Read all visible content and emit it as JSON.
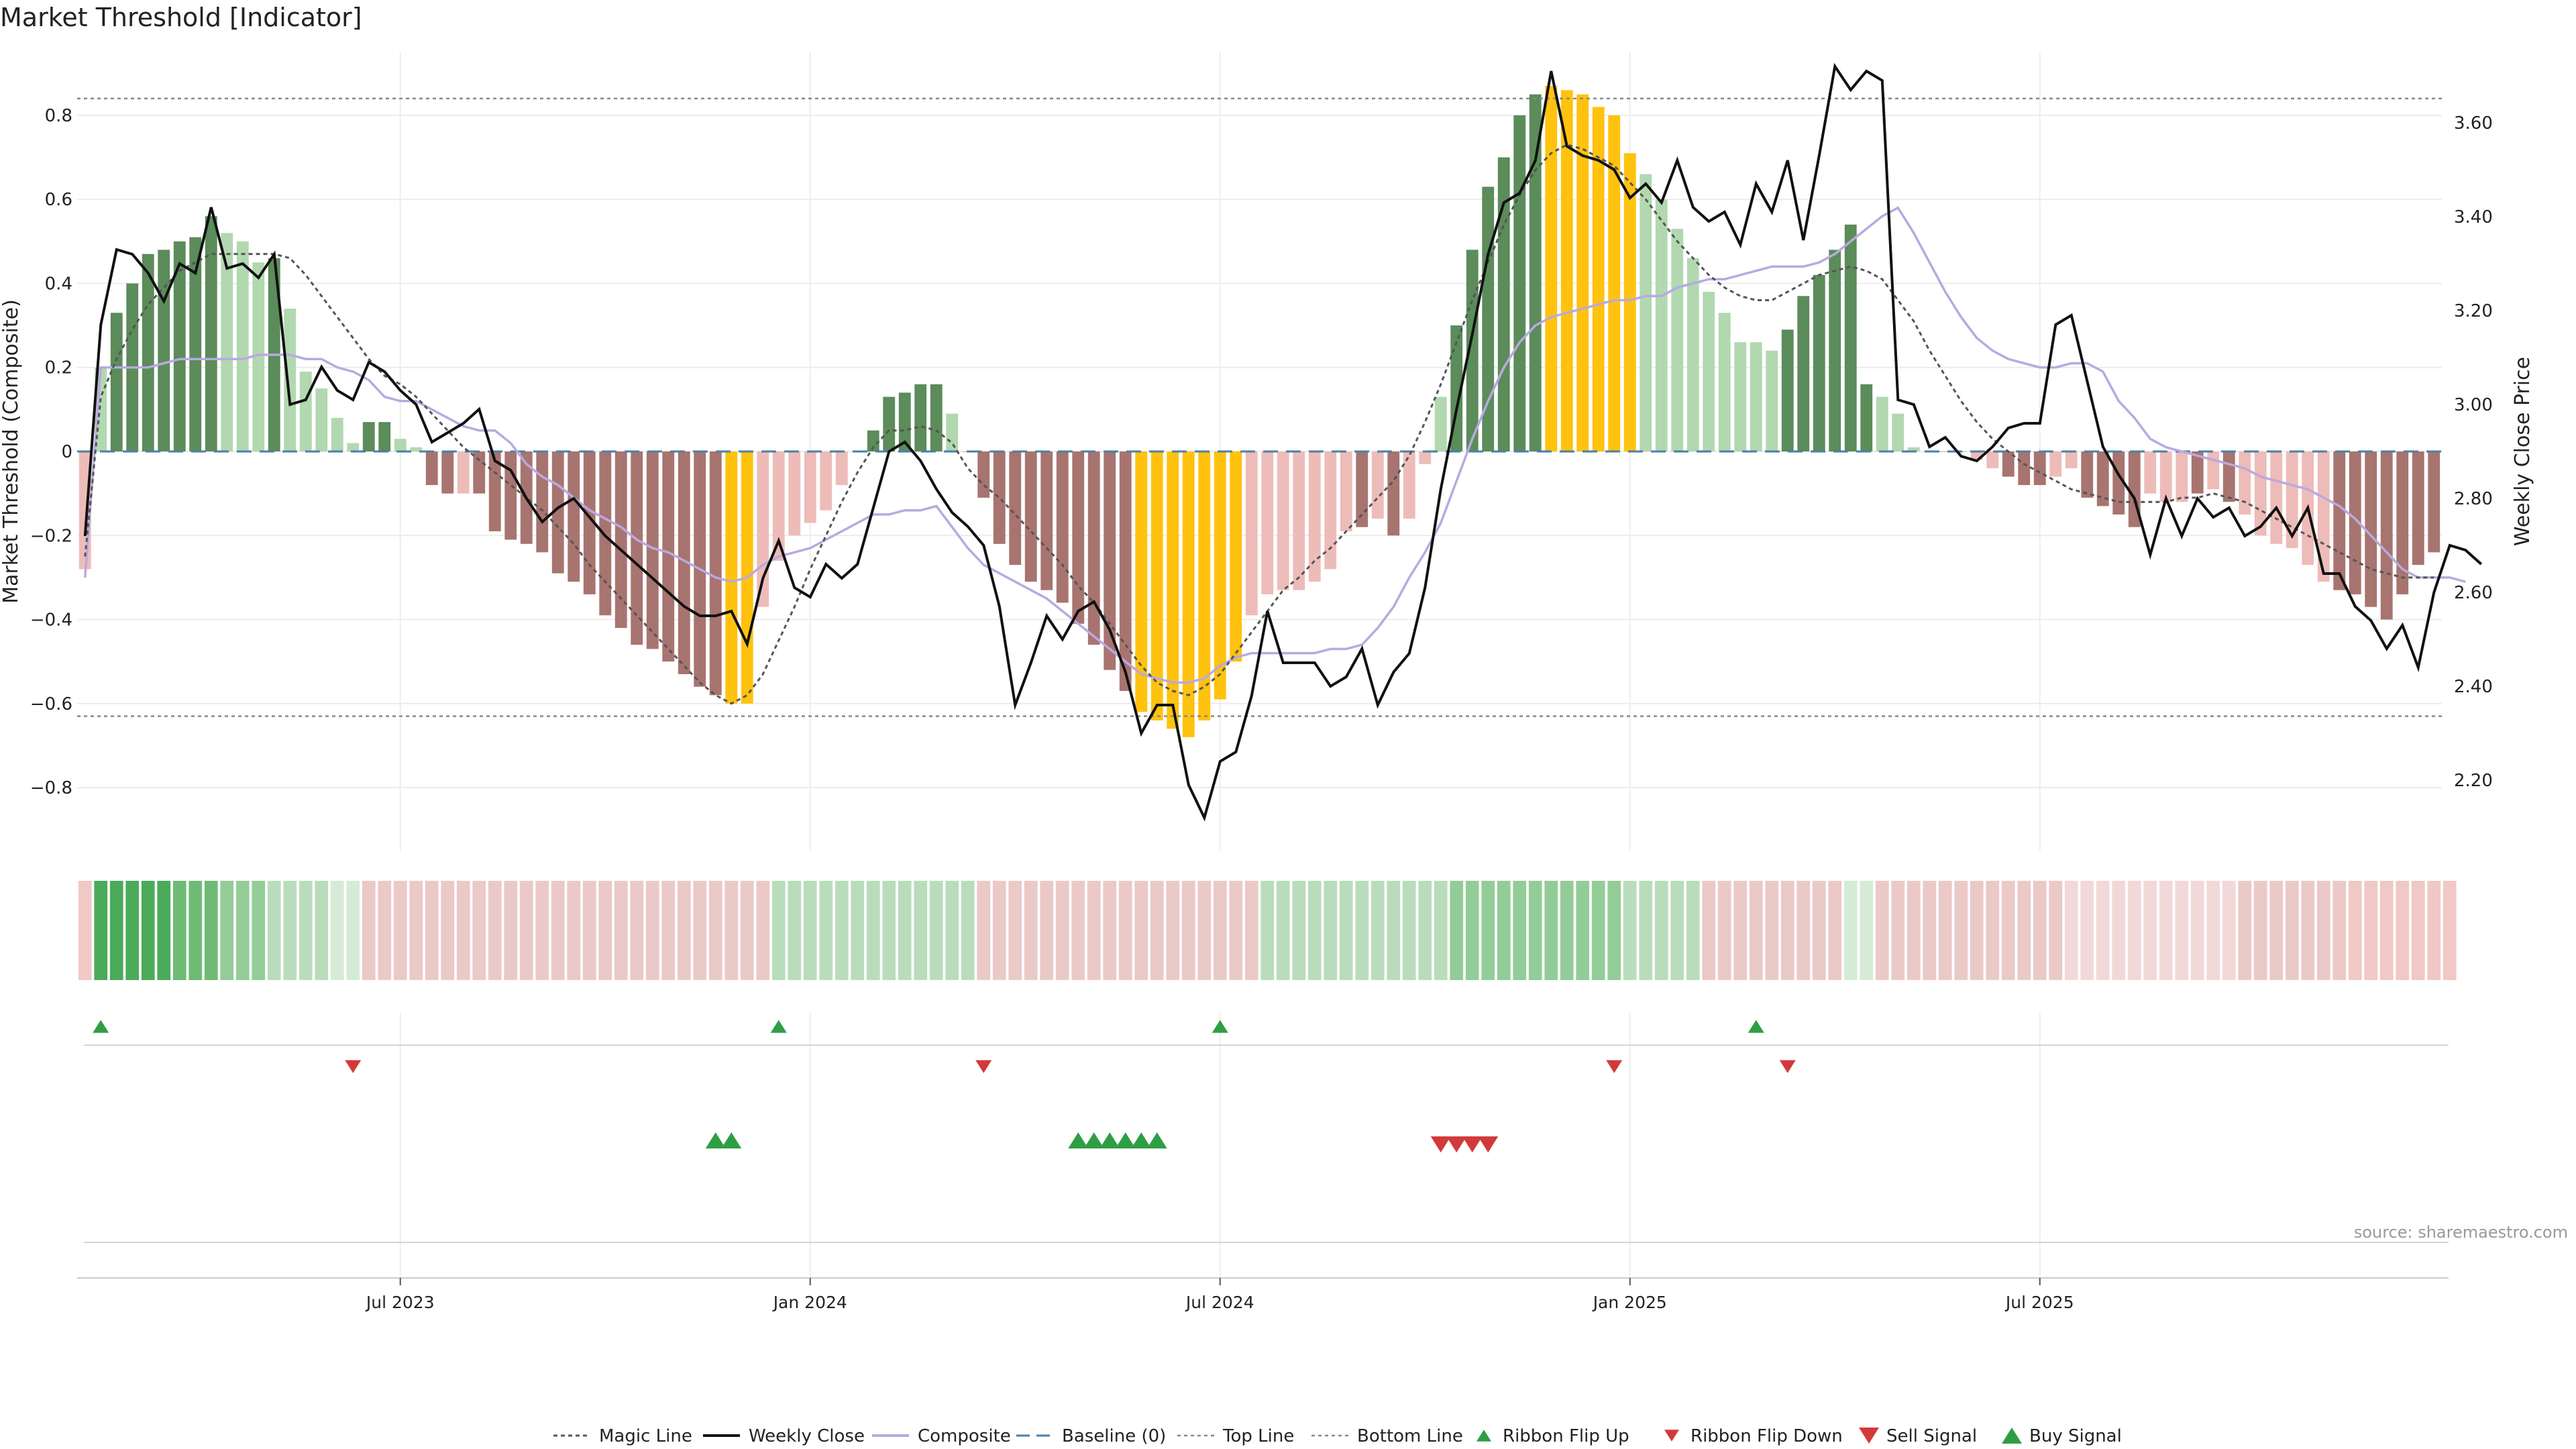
{
  "title": "Market Threshold [Indicator]",
  "source": "source: sharemaestro.com",
  "colors": {
    "dark_green": "#5b8c5a",
    "light_green": "#b2d8b0",
    "dark_red": "#a87470",
    "light_red": "#eebcb8",
    "gold": "#ffc20e",
    "composite": "#b9a9e0",
    "baseline": "#4a7fa8",
    "close": "#111111",
    "magic": "#555555",
    "up_marker": "#2e9e44",
    "down_marker": "#d23a3a"
  },
  "chart_data": {
    "type": "bar",
    "title": "Market Threshold [Indicator]",
    "ylabel_left": "Market Threshold (Composite)",
    "ylabel_right": "Weekly Close Price",
    "ylim_left": [
      -0.95,
      0.95
    ],
    "ylim_right": [
      2.05,
      3.75
    ],
    "left_ticks": [
      {
        "v": 0.8,
        "label": "0.8"
      },
      {
        "v": 0.6,
        "label": "0.6"
      },
      {
        "v": 0.4,
        "label": "0.4"
      },
      {
        "v": 0.2,
        "label": "0.2"
      },
      {
        "v": 0,
        "label": "0"
      },
      {
        "v": -0.2,
        "label": "−0.2"
      },
      {
        "v": -0.4,
        "label": "−0.4"
      },
      {
        "v": -0.6,
        "label": "−0.6"
      },
      {
        "v": -0.8,
        "label": "−0.8"
      }
    ],
    "right_ticks": [
      {
        "v": 3.6,
        "label": "3.60"
      },
      {
        "v": 3.4,
        "label": "3.40"
      },
      {
        "v": 3.2,
        "label": "3.20"
      },
      {
        "v": 3.0,
        "label": "3.00"
      },
      {
        "v": 2.8,
        "label": "2.80"
      },
      {
        "v": 2.6,
        "label": "2.60"
      },
      {
        "v": 2.4,
        "label": "2.40"
      },
      {
        "v": 2.2,
        "label": "2.20"
      }
    ],
    "x_ticks": [
      {
        "i": 20,
        "label": "Jul 2023"
      },
      {
        "i": 46,
        "label": "Jan 2024"
      },
      {
        "i": 72,
        "label": "Jul 2024"
      },
      {
        "i": 98,
        "label": "Jan 2025"
      },
      {
        "i": 124,
        "label": "Jul 2025"
      }
    ],
    "top_line": 0.84,
    "bottom_line": -0.63,
    "composite_values": [
      -0.28,
      0.2,
      0.33,
      0.4,
      0.47,
      0.48,
      0.5,
      0.51,
      0.56,
      0.52,
      0.5,
      0.45,
      0.46,
      0.34,
      0.19,
      0.15,
      0.08,
      0.02,
      0.07,
      0.07,
      0.03,
      0.01,
      -0.08,
      -0.1,
      -0.1,
      -0.1,
      -0.19,
      -0.21,
      -0.22,
      -0.24,
      -0.29,
      -0.31,
      -0.34,
      -0.39,
      -0.42,
      -0.46,
      -0.47,
      -0.5,
      -0.53,
      -0.56,
      -0.58,
      -0.6,
      -0.6,
      -0.37,
      -0.26,
      -0.2,
      -0.17,
      -0.14,
      -0.08,
      0.0,
      0.05,
      0.13,
      0.14,
      0.16,
      0.16,
      0.09,
      0.0,
      -0.11,
      -0.22,
      -0.27,
      -0.31,
      -0.33,
      -0.36,
      -0.41,
      -0.46,
      -0.52,
      -0.57,
      -0.62,
      -0.64,
      -0.66,
      -0.68,
      -0.64,
      -0.59,
      -0.5,
      -0.39,
      -0.34,
      -0.33,
      -0.33,
      -0.31,
      -0.28,
      -0.19,
      -0.18,
      -0.16,
      -0.2,
      -0.16,
      -0.03,
      0.13,
      0.3,
      0.48,
      0.63,
      0.7,
      0.8,
      0.85,
      0.87,
      0.86,
      0.85,
      0.82,
      0.8,
      0.71,
      0.66,
      0.6,
      0.53,
      0.46,
      0.38,
      0.33,
      0.26,
      0.26,
      0.24,
      0.29,
      0.37,
      0.42,
      0.48,
      0.54,
      0.16,
      0.13,
      0.09,
      0.01,
      0.0,
      0.0,
      0.0,
      -0.02,
      -0.04,
      -0.06,
      -0.08,
      -0.08,
      -0.06,
      -0.04,
      -0.11,
      -0.13,
      -0.15,
      -0.18,
      -0.1,
      -0.12,
      -0.12,
      -0.1,
      -0.09,
      -0.12,
      -0.15,
      -0.2,
      -0.22,
      -0.23,
      -0.27,
      -0.31,
      -0.33,
      -0.34,
      -0.37,
      -0.4,
      -0.34,
      -0.27,
      -0.24
    ],
    "bar_color_keys": [
      "LR",
      "LG",
      "DG",
      "DG",
      "DG",
      "DG",
      "DG",
      "DG",
      "DG",
      "LG",
      "LG",
      "LG",
      "DG",
      "LG",
      "LG",
      "LG",
      "LG",
      "LG",
      "DG",
      "DG",
      "LG",
      "LG",
      "DR",
      "DR",
      "LR",
      "DR",
      "DR",
      "DR",
      "DR",
      "DR",
      "DR",
      "DR",
      "DR",
      "DR",
      "DR",
      "DR",
      "DR",
      "DR",
      "DR",
      "DR",
      "DR",
      "GO",
      "GO",
      "LR",
      "LR",
      "LR",
      "LR",
      "LR",
      "LR",
      "LR",
      "DG",
      "DG",
      "DG",
      "DG",
      "DG",
      "LG",
      "LG",
      "DR",
      "DR",
      "DR",
      "DR",
      "DR",
      "DR",
      "DR",
      "DR",
      "DR",
      "DR",
      "GO",
      "GO",
      "GO",
      "GO",
      "GO",
      "GO",
      "GO",
      "LR",
      "LR",
      "LR",
      "LR",
      "LR",
      "LR",
      "LR",
      "DR",
      "LR",
      "DR",
      "LR",
      "LR",
      "LG",
      "DG",
      "DG",
      "DG",
      "DG",
      "DG",
      "DG",
      "GO",
      "GO",
      "GO",
      "GO",
      "GO",
      "GO",
      "LG",
      "LG",
      "LG",
      "LG",
      "LG",
      "LG",
      "LG",
      "LG",
      "LG",
      "DG",
      "DG",
      "DG",
      "DG",
      "DG",
      "DG",
      "LG",
      "LG",
      "LG",
      "LG",
      "LG",
      "LG",
      "LR",
      "LR",
      "DR",
      "DR",
      "DR",
      "LR",
      "LR",
      "DR",
      "DR",
      "DR",
      "DR",
      "LR",
      "LR",
      "LR",
      "DR",
      "LR",
      "DR",
      "LR",
      "LR",
      "LR",
      "LR",
      "LR",
      "LR",
      "DR",
      "DR",
      "DR",
      "DR",
      "DR",
      "DR",
      "DR",
      "LR",
      "LR",
      "LR"
    ],
    "composite_line": [
      -0.3,
      0.2,
      0.2,
      0.2,
      0.2,
      0.21,
      0.22,
      0.22,
      0.22,
      0.22,
      0.22,
      0.23,
      0.23,
      0.23,
      0.22,
      0.22,
      0.2,
      0.19,
      0.17,
      0.13,
      0.12,
      0.12,
      0.1,
      0.08,
      0.06,
      0.05,
      0.05,
      0.02,
      -0.03,
      -0.06,
      -0.08,
      -0.11,
      -0.14,
      -0.16,
      -0.18,
      -0.21,
      -0.23,
      -0.24,
      -0.26,
      -0.28,
      -0.3,
      -0.31,
      -0.3,
      -0.27,
      -0.25,
      -0.24,
      -0.23,
      -0.21,
      -0.19,
      -0.17,
      -0.15,
      -0.15,
      -0.14,
      -0.14,
      -0.13,
      -0.18,
      -0.23,
      -0.27,
      -0.29,
      -0.31,
      -0.33,
      -0.35,
      -0.38,
      -0.41,
      -0.44,
      -0.47,
      -0.5,
      -0.53,
      -0.54,
      -0.55,
      -0.55,
      -0.54,
      -0.51,
      -0.49,
      -0.48,
      -0.48,
      -0.48,
      -0.48,
      -0.48,
      -0.47,
      -0.47,
      -0.46,
      -0.42,
      -0.37,
      -0.3,
      -0.24,
      -0.17,
      -0.07,
      0.03,
      0.12,
      0.2,
      0.26,
      0.3,
      0.32,
      0.33,
      0.34,
      0.35,
      0.36,
      0.36,
      0.37,
      0.37,
      0.39,
      0.4,
      0.41,
      0.41,
      0.42,
      0.43,
      0.44,
      0.44,
      0.44,
      0.45,
      0.47,
      0.5,
      0.53,
      0.56,
      0.58,
      0.52,
      0.45,
      0.38,
      0.32,
      0.27,
      0.24,
      0.22,
      0.21,
      0.2,
      0.2,
      0.21,
      0.21,
      0.19,
      0.12,
      0.08,
      0.03,
      0.01,
      0.0,
      -0.01,
      -0.02,
      -0.03,
      -0.04,
      -0.06,
      -0.07,
      -0.08,
      -0.09,
      -0.11,
      -0.13,
      -0.16,
      -0.2,
      -0.24,
      -0.28,
      -0.3,
      -0.3,
      -0.3,
      -0.31
    ],
    "magic_line": [
      -0.25,
      0.13,
      0.22,
      0.29,
      0.35,
      0.39,
      0.43,
      0.45,
      0.47,
      0.47,
      0.47,
      0.47,
      0.47,
      0.46,
      0.42,
      0.37,
      0.32,
      0.27,
      0.22,
      0.18,
      0.16,
      0.13,
      0.09,
      0.05,
      0.01,
      -0.02,
      -0.05,
      -0.08,
      -0.11,
      -0.14,
      -0.18,
      -0.22,
      -0.27,
      -0.31,
      -0.35,
      -0.39,
      -0.43,
      -0.47,
      -0.51,
      -0.55,
      -0.58,
      -0.6,
      -0.58,
      -0.53,
      -0.45,
      -0.37,
      -0.28,
      -0.2,
      -0.12,
      -0.05,
      0.01,
      0.05,
      0.05,
      0.06,
      0.05,
      0.02,
      -0.04,
      -0.08,
      -0.11,
      -0.15,
      -0.19,
      -0.23,
      -0.27,
      -0.32,
      -0.36,
      -0.41,
      -0.46,
      -0.51,
      -0.55,
      -0.57,
      -0.58,
      -0.56,
      -0.53,
      -0.48,
      -0.43,
      -0.38,
      -0.33,
      -0.3,
      -0.26,
      -0.23,
      -0.19,
      -0.15,
      -0.11,
      -0.07,
      -0.01,
      0.07,
      0.16,
      0.26,
      0.36,
      0.45,
      0.54,
      0.61,
      0.67,
      0.71,
      0.73,
      0.72,
      0.7,
      0.68,
      0.64,
      0.6,
      0.55,
      0.5,
      0.46,
      0.42,
      0.39,
      0.37,
      0.36,
      0.36,
      0.38,
      0.4,
      0.42,
      0.43,
      0.44,
      0.43,
      0.41,
      0.36,
      0.31,
      0.24,
      0.18,
      0.12,
      0.07,
      0.03,
      0.0,
      -0.03,
      -0.05,
      -0.07,
      -0.09,
      -0.1,
      -0.11,
      -0.12,
      -0.12,
      -0.12,
      -0.12,
      -0.11,
      -0.11,
      -0.1,
      -0.11,
      -0.12,
      -0.14,
      -0.16,
      -0.18,
      -0.2,
      -0.22,
      -0.24,
      -0.26,
      -0.28,
      -0.29,
      -0.3,
      -0.3,
      -0.3
    ],
    "weekly_close": [
      2.72,
      3.17,
      3.33,
      3.32,
      3.28,
      3.22,
      3.3,
      3.28,
      3.42,
      3.29,
      3.3,
      3.27,
      3.32,
      3.0,
      3.01,
      3.08,
      3.03,
      3.01,
      3.09,
      3.07,
      3.03,
      3.0,
      2.92,
      2.94,
      2.96,
      2.99,
      2.88,
      2.86,
      2.8,
      2.75,
      2.78,
      2.8,
      2.76,
      2.72,
      2.69,
      2.66,
      2.63,
      2.6,
      2.57,
      2.55,
      2.55,
      2.56,
      2.49,
      2.63,
      2.71,
      2.61,
      2.59,
      2.66,
      2.63,
      2.66,
      2.78,
      2.9,
      2.92,
      2.88,
      2.82,
      2.77,
      2.74,
      2.7,
      2.57,
      2.36,
      2.45,
      2.55,
      2.5,
      2.56,
      2.58,
      2.52,
      2.43,
      2.3,
      2.36,
      2.36,
      2.19,
      2.12,
      2.24,
      2.26,
      2.38,
      2.56,
      2.45,
      2.45,
      2.45,
      2.4,
      2.42,
      2.48,
      2.36,
      2.43,
      2.47,
      2.61,
      2.82,
      2.99,
      3.15,
      3.32,
      3.43,
      3.45,
      3.52,
      3.71,
      3.55,
      3.53,
      3.52,
      3.5,
      3.44,
      3.47,
      3.43,
      3.52,
      3.42,
      3.39,
      3.41,
      3.34,
      3.47,
      3.41,
      3.52,
      3.35,
      3.53,
      3.72,
      3.67,
      3.71,
      3.69,
      3.01,
      3.0,
      2.91,
      2.93,
      2.89,
      2.88,
      2.91,
      2.95,
      2.96,
      2.96,
      3.17,
      3.19,
      3.05,
      2.91,
      2.85,
      2.8,
      2.68,
      2.8,
      2.72,
      2.8,
      2.76,
      2.78,
      2.72,
      2.74,
      2.78,
      2.72,
      2.78,
      2.64,
      2.64,
      2.57,
      2.54,
      2.48,
      2.53,
      2.44,
      2.6,
      2.7,
      2.69,
      2.66
    ],
    "ribbon_keys": [
      "R3",
      "G5",
      "G5",
      "G5",
      "G5",
      "G5",
      "G4",
      "G4",
      "G4",
      "G3",
      "G3",
      "G3",
      "G2",
      "G2",
      "G2",
      "G2",
      "G1",
      "G1",
      "R2",
      "R2",
      "R2",
      "R2",
      "R2",
      "R2",
      "R2",
      "R2",
      "R2",
      "R2",
      "R2",
      "R2",
      "R2",
      "R2",
      "R2",
      "R2",
      "R2",
      "R2",
      "R2",
      "R2",
      "R2",
      "R2",
      "R2",
      "R2",
      "R2",
      "R2",
      "G2",
      "G2",
      "G2",
      "G2",
      "G2",
      "G2",
      "G2",
      "G2",
      "G2",
      "G2",
      "G2",
      "G2",
      "G2",
      "R2",
      "R2",
      "R2",
      "R2",
      "R2",
      "R2",
      "R2",
      "R2",
      "R2",
      "R2",
      "R2",
      "R2",
      "R2",
      "R2",
      "R2",
      "R2",
      "R2",
      "R2",
      "G2",
      "G2",
      "G2",
      "G2",
      "G2",
      "G2",
      "G2",
      "G2",
      "G2",
      "G2",
      "G2",
      "G2",
      "G3",
      "G3",
      "G3",
      "G3",
      "G3",
      "G3",
      "G3",
      "G3",
      "G3",
      "G3",
      "G3",
      "G2",
      "G2",
      "G2",
      "G2",
      "G2",
      "R2",
      "R2",
      "R2",
      "R2",
      "R2",
      "R2",
      "R2",
      "R2",
      "R2",
      "G1",
      "G1",
      "R2",
      "R2",
      "R2",
      "R2",
      "R2",
      "R2",
      "R2",
      "R2",
      "R2",
      "R2",
      "R2",
      "R2",
      "R1",
      "R1",
      "R1",
      "R1",
      "R1",
      "R1",
      "R1",
      "R1",
      "R1",
      "R1",
      "R1",
      "R2",
      "R2",
      "R2",
      "R2",
      "R2",
      "R2",
      "R2",
      "R3",
      "R3",
      "R3",
      "R3",
      "R3",
      "R3",
      "R3"
    ],
    "ribbon_flip_up": [
      1,
      44,
      72,
      106
    ],
    "ribbon_flip_down": [
      17,
      57,
      97,
      108
    ],
    "buy_signals": [
      40,
      41,
      63,
      64,
      65,
      66,
      67,
      68
    ],
    "sell_signals": [
      86,
      87,
      88,
      89
    ],
    "legend": [
      "Magic Line",
      "Weekly Close",
      "Composite",
      "Baseline (0)",
      "Top Line",
      "Bottom Line",
      "Ribbon Flip Up",
      "Ribbon Flip Down",
      "Sell Signal",
      "Buy Signal"
    ]
  }
}
